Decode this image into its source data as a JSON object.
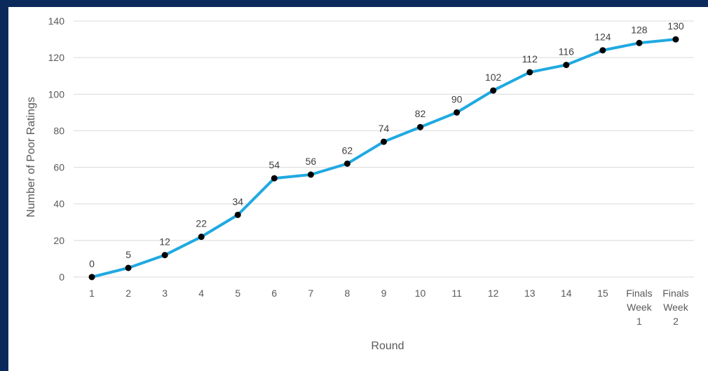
{
  "chart_data": {
    "type": "line",
    "title": "",
    "xlabel": "Round",
    "ylabel": "Number of Poor Ratings",
    "ylim": [
      0,
      140
    ],
    "yticks": [
      0,
      20,
      40,
      60,
      80,
      100,
      120,
      140
    ],
    "grid": true,
    "legend": "none",
    "categories": [
      [
        "1"
      ],
      [
        "2"
      ],
      [
        "3"
      ],
      [
        "4"
      ],
      [
        "5"
      ],
      [
        "6"
      ],
      [
        "7"
      ],
      [
        "8"
      ],
      [
        "9"
      ],
      [
        "10"
      ],
      [
        "11"
      ],
      [
        "12"
      ],
      [
        "13"
      ],
      [
        "14"
      ],
      [
        "15"
      ],
      [
        "Finals",
        "Week",
        "1"
      ],
      [
        "Finals",
        "Week",
        "2"
      ]
    ],
    "series": [
      {
        "values": [
          0,
          5,
          12,
          22,
          34,
          54,
          56,
          62,
          74,
          82,
          90,
          102,
          112,
          116,
          124,
          128,
          130
        ],
        "color": "#1fa9e1",
        "marker_color": "#000000"
      }
    ]
  }
}
